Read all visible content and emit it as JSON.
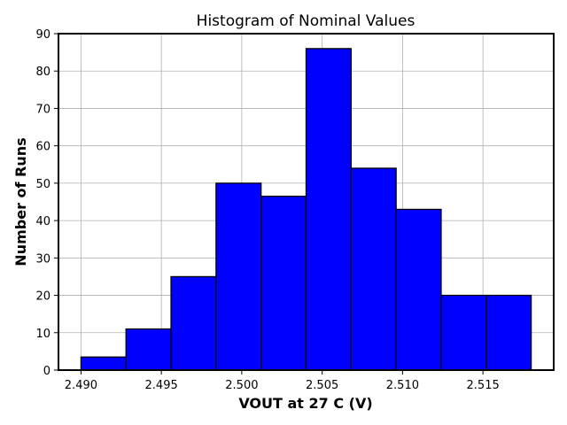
{
  "chart_data": {
    "type": "bar",
    "title": "Histogram of Nominal Values",
    "xlabel": "VOUT at 27 C (V)",
    "ylabel": "Number of Runs",
    "bins": [
      {
        "start": 2.49,
        "end": 2.4928,
        "count": 3.5
      },
      {
        "start": 2.4928,
        "end": 2.4956,
        "count": 11
      },
      {
        "start": 2.4956,
        "end": 2.4984,
        "count": 25
      },
      {
        "start": 2.4984,
        "end": 2.5012,
        "count": 50
      },
      {
        "start": 2.5012,
        "end": 2.504,
        "count": 46.5
      },
      {
        "start": 2.504,
        "end": 2.5068,
        "count": 86
      },
      {
        "start": 2.5068,
        "end": 2.5096,
        "count": 54
      },
      {
        "start": 2.5096,
        "end": 2.5124,
        "count": 43
      },
      {
        "start": 2.5124,
        "end": 2.5152,
        "count": 20
      },
      {
        "start": 2.5152,
        "end": 2.518,
        "count": 20
      }
    ],
    "xlim": [
      2.4886,
      2.5194
    ],
    "ylim": [
      0,
      90
    ],
    "xticks": [
      "2.490",
      "2.495",
      "2.500",
      "2.505",
      "2.510",
      "2.515"
    ],
    "yticks": [
      "0",
      "10",
      "20",
      "30",
      "40",
      "50",
      "60",
      "70",
      "80",
      "90"
    ],
    "grid": true,
    "bar_color": "#0000ff",
    "edge_color": "#000000"
  }
}
